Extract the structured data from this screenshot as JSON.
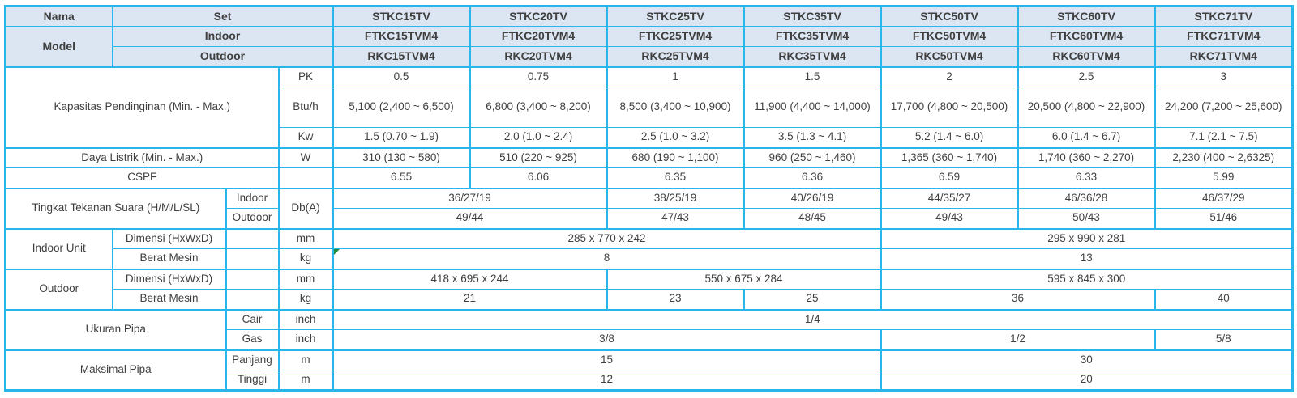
{
  "table": {
    "description": "AC split specification table",
    "rows": [
      {
        "cls": "",
        "cells": [
          {
            "t": "Nama",
            "k": "hdr"
          },
          {
            "t": "Set",
            "k": "hdr",
            "cs": 3
          },
          {
            "t": "STKC15TV",
            "k": "hdr"
          },
          {
            "t": "STKC20TV",
            "k": "hdr"
          },
          {
            "t": "STKC25TV",
            "k": "hdr"
          },
          {
            "t": "STKC35TV",
            "k": "hdr"
          },
          {
            "t": "STKC50TV",
            "k": "hdr"
          },
          {
            "t": "STKC60TV",
            "k": "hdr"
          },
          {
            "t": "STKC71TV",
            "k": "hdr"
          }
        ]
      },
      {
        "cls": "",
        "cells": [
          {
            "t": "Model",
            "k": "hdr",
            "rs": 2
          },
          {
            "t": "Indoor",
            "k": "hdr",
            "cs": 3
          },
          {
            "t": "FTKC15TVM4",
            "k": "hdr"
          },
          {
            "t": "FTKC20TVM4",
            "k": "hdr"
          },
          {
            "t": "FTKC25TVM4",
            "k": "hdr"
          },
          {
            "t": "FTKC35TVM4",
            "k": "hdr"
          },
          {
            "t": "FTKC50TVM4",
            "k": "hdr"
          },
          {
            "t": "FTKC60TVM4",
            "k": "hdr"
          },
          {
            "t": "FTKC71TVM4",
            "k": "hdr"
          }
        ]
      },
      {
        "cls": "",
        "cells": [
          {
            "t": "Outdoor",
            "k": "hdr",
            "cs": 3
          },
          {
            "t": "RKC15TVM4",
            "k": "hdr"
          },
          {
            "t": "RKC20TVM4",
            "k": "hdr"
          },
          {
            "t": "RKC25TVM4",
            "k": "hdr"
          },
          {
            "t": "RKC35TVM4",
            "k": "hdr"
          },
          {
            "t": "RKC50TVM4",
            "k": "hdr"
          },
          {
            "t": "RKC60TVM4",
            "k": "hdr"
          },
          {
            "t": "RKC71TVM4",
            "k": "hdr"
          }
        ]
      },
      {
        "cls": "sec",
        "cells": [
          {
            "t": "Kapasitas Pendinginan (Min. - Max.)",
            "k": "lbl",
            "cs": 3,
            "rs": 3
          },
          {
            "t": "PK",
            "k": "unit"
          },
          {
            "t": "0.5",
            "k": "val"
          },
          {
            "t": "0.75",
            "k": "val"
          },
          {
            "t": "1",
            "k": "val"
          },
          {
            "t": "1.5",
            "k": "val"
          },
          {
            "t": "2",
            "k": "val"
          },
          {
            "t": "2.5",
            "k": "val"
          },
          {
            "t": "3",
            "k": "val"
          }
        ]
      },
      {
        "cls": "tall",
        "cells": [
          {
            "t": "Btu/h",
            "k": "unit"
          },
          {
            "t": "5,100 (2,400 ~ 6,500)",
            "k": "val"
          },
          {
            "t": "6,800 (3,400 ~ 8,200)",
            "k": "val"
          },
          {
            "t": "8,500 (3,400 ~ 10,900)",
            "k": "val"
          },
          {
            "t": "11,900 (4,400 ~ 14,000)",
            "k": "val"
          },
          {
            "t": "17,700 (4,800 ~ 20,500)",
            "k": "val"
          },
          {
            "t": "20,500 (4,800 ~ 22,900)",
            "k": "val"
          },
          {
            "t": "24,200 (7,200 ~ 25,600)",
            "k": "val"
          }
        ]
      },
      {
        "cls": "",
        "cells": [
          {
            "t": "Kw",
            "k": "unit"
          },
          {
            "t": "1.5 (0.70 ~ 1.9)",
            "k": "val"
          },
          {
            "t": "2.0 (1.0 ~ 2.4)",
            "k": "val"
          },
          {
            "t": "2.5 (1.0 ~ 3.2)",
            "k": "val"
          },
          {
            "t": "3.5 (1.3 ~ 4.1)",
            "k": "val"
          },
          {
            "t": "5.2 (1.4 ~ 6.0)",
            "k": "val"
          },
          {
            "t": "6.0 (1.4 ~ 6.7)",
            "k": "val"
          },
          {
            "t": "7.1 (2.1 ~ 7.5)",
            "k": "val"
          }
        ]
      },
      {
        "cls": "sec",
        "cells": [
          {
            "t": "Daya Listrik (Min. - Max.)",
            "k": "lbl",
            "cs": 3
          },
          {
            "t": "W",
            "k": "unit"
          },
          {
            "t": "310 (130 ~ 580)",
            "k": "val"
          },
          {
            "t": "510 (220 ~ 925)",
            "k": "val"
          },
          {
            "t": "680 (190 ~ 1,100)",
            "k": "val"
          },
          {
            "t": "960 (250 ~ 1,460)",
            "k": "val"
          },
          {
            "t": "1,365 (360 ~ 1,740)",
            "k": "val"
          },
          {
            "t": "1,740 (360 ~ 2,270)",
            "k": "val"
          },
          {
            "t": "2,230 (400 ~ 2,6325)",
            "k": "val"
          }
        ]
      },
      {
        "cls": "",
        "cells": [
          {
            "t": "CSPF",
            "k": "lbl",
            "cs": 3
          },
          {
            "t": "",
            "k": "emp"
          },
          {
            "t": "6.55",
            "k": "val"
          },
          {
            "t": "6.06",
            "k": "val"
          },
          {
            "t": "6.35",
            "k": "val"
          },
          {
            "t": "6.36",
            "k": "val"
          },
          {
            "t": "6.59",
            "k": "val"
          },
          {
            "t": "6.33",
            "k": "val"
          },
          {
            "t": "5.99",
            "k": "val"
          }
        ]
      },
      {
        "cls": "sec",
        "cells": [
          {
            "t": "Tingkat Tekanan Suara (H/M/L/SL)",
            "k": "lbl",
            "cs": 2,
            "rs": 2
          },
          {
            "t": "Indoor",
            "k": "sub"
          },
          {
            "t": "Db(A)",
            "k": "unit",
            "rs": 2
          },
          {
            "t": "36/27/19",
            "k": "val",
            "cs": 2
          },
          {
            "t": "38/25/19",
            "k": "val"
          },
          {
            "t": "40/26/19",
            "k": "val"
          },
          {
            "t": "44/35/27",
            "k": "val"
          },
          {
            "t": "46/36/28",
            "k": "val"
          },
          {
            "t": "46/37/29",
            "k": "val"
          }
        ]
      },
      {
        "cls": "",
        "cells": [
          {
            "t": "Outdoor",
            "k": "sub"
          },
          {
            "t": "49/44",
            "k": "val",
            "cs": 2
          },
          {
            "t": "47/43",
            "k": "val"
          },
          {
            "t": "48/45",
            "k": "val"
          },
          {
            "t": "49/43",
            "k": "val"
          },
          {
            "t": "50/43",
            "k": "val"
          },
          {
            "t": "51/46",
            "k": "val"
          }
        ]
      },
      {
        "cls": "sec",
        "cells": [
          {
            "t": "Indoor Unit",
            "k": "lbl",
            "rs": 2
          },
          {
            "t": "Dimensi (HxWxD)",
            "k": "sub"
          },
          {
            "t": "",
            "k": "emp"
          },
          {
            "t": "mm",
            "k": "unit"
          },
          {
            "t": "285 x 770 x 242",
            "k": "val",
            "cs": 4
          },
          {
            "t": "295 x 990 x 281",
            "k": "val",
            "cs": 3
          }
        ]
      },
      {
        "cls": "",
        "cells": [
          {
            "t": "Berat Mesin",
            "k": "sub"
          },
          {
            "t": "",
            "k": "emp"
          },
          {
            "t": "kg",
            "k": "unit"
          },
          {
            "t": "8",
            "k": "val",
            "cs": 4,
            "fl": true
          },
          {
            "t": "13",
            "k": "val",
            "cs": 3
          }
        ]
      },
      {
        "cls": "sec",
        "cells": [
          {
            "t": "Outdoor",
            "k": "lbl",
            "rs": 2
          },
          {
            "t": "Dimensi (HxWxD)",
            "k": "sub"
          },
          {
            "t": "",
            "k": "emp"
          },
          {
            "t": "mm",
            "k": "unit"
          },
          {
            "t": "418 x 695 x 244",
            "k": "val",
            "cs": 2
          },
          {
            "t": "550 x 675 x 284",
            "k": "val",
            "cs": 2
          },
          {
            "t": "595 x 845 x 300",
            "k": "val",
            "cs": 3
          }
        ]
      },
      {
        "cls": "",
        "cells": [
          {
            "t": "Berat Mesin",
            "k": "sub"
          },
          {
            "t": "",
            "k": "emp"
          },
          {
            "t": "kg",
            "k": "unit"
          },
          {
            "t": "21",
            "k": "val",
            "cs": 2
          },
          {
            "t": "23",
            "k": "val"
          },
          {
            "t": "25",
            "k": "val"
          },
          {
            "t": "36",
            "k": "val",
            "cs": 2
          },
          {
            "t": "40",
            "k": "val"
          }
        ]
      },
      {
        "cls": "sec",
        "cells": [
          {
            "t": "Ukuran Pipa",
            "k": "lbl",
            "cs": 2,
            "rs": 2
          },
          {
            "t": "Cair",
            "k": "sub"
          },
          {
            "t": "inch",
            "k": "unit"
          },
          {
            "t": "1/4",
            "k": "val",
            "cs": 7
          }
        ]
      },
      {
        "cls": "",
        "cells": [
          {
            "t": "Gas",
            "k": "sub"
          },
          {
            "t": "inch",
            "k": "unit"
          },
          {
            "t": "3/8",
            "k": "val",
            "cs": 4
          },
          {
            "t": "1/2",
            "k": "val",
            "cs": 2
          },
          {
            "t": "5/8",
            "k": "val"
          }
        ]
      },
      {
        "cls": "sec",
        "cells": [
          {
            "t": "Maksimal Pipa",
            "k": "lbl",
            "cs": 2,
            "rs": 2
          },
          {
            "t": "Panjang",
            "k": "sub"
          },
          {
            "t": "m",
            "k": "unit"
          },
          {
            "t": "15",
            "k": "val",
            "cs": 4
          },
          {
            "t": "30",
            "k": "val",
            "cs": 3
          }
        ]
      },
      {
        "cls": "",
        "cells": [
          {
            "t": "Tinggi",
            "k": "sub"
          },
          {
            "t": "m",
            "k": "unit"
          },
          {
            "t": "12",
            "k": "val",
            "cs": 4
          },
          {
            "t": "20",
            "k": "val",
            "cs": 3
          }
        ]
      }
    ]
  }
}
